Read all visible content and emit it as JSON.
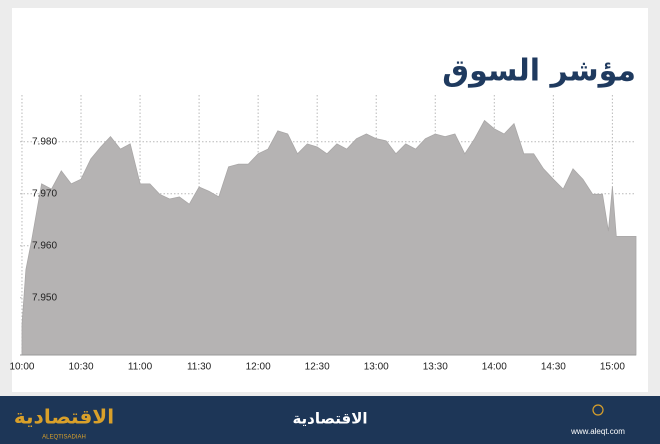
{
  "chart_data": {
    "type": "area",
    "title": "مؤشر السوق",
    "color": "#b5b3b3",
    "grid": true,
    "x": [
      "10:00",
      "10:02",
      "10:05",
      "10:10",
      "10:15",
      "10:20",
      "10:25",
      "10:30",
      "10:35",
      "10:40",
      "10:45",
      "10:50",
      "10:55",
      "11:00",
      "11:05",
      "11:10",
      "11:15",
      "11:20",
      "11:25",
      "11:30",
      "11:35",
      "11:40",
      "11:45",
      "11:50",
      "11:55",
      "12:00",
      "12:05",
      "12:10",
      "12:15",
      "12:20",
      "12:25",
      "12:30",
      "12:35",
      "12:40",
      "12:45",
      "12:50",
      "12:55",
      "13:00",
      "13:05",
      "13:10",
      "13:15",
      "13:20",
      "13:25",
      "13:30",
      "13:35",
      "13:40",
      "13:45",
      "13:50",
      "13:55",
      "14:00",
      "14:05",
      "14:10",
      "14:15",
      "14:20",
      "14:25",
      "14:30",
      "14:35",
      "14:40",
      "14:45",
      "14:50",
      "14:55",
      "14:58",
      "15:00",
      "15:02",
      "15:12"
    ],
    "values": [
      7.9448,
      7.9554,
      7.9612,
      7.9719,
      7.9709,
      7.9744,
      7.9719,
      7.9728,
      7.9767,
      7.979,
      7.981,
      7.9786,
      7.9796,
      7.9719,
      7.9719,
      7.9699,
      7.969,
      7.9694,
      7.968,
      7.9713,
      7.9705,
      7.9694,
      7.9752,
      7.9757,
      7.9757,
      7.9777,
      7.9786,
      7.9821,
      7.9815,
      7.9777,
      7.9796,
      7.979,
      7.9777,
      7.9796,
      7.9786,
      7.9806,
      7.9815,
      7.9806,
      7.9802,
      7.9777,
      7.9796,
      7.9786,
      7.9806,
      7.9815,
      7.981,
      7.9815,
      7.9777,
      7.9806,
      7.9841,
      7.9825,
      7.9815,
      7.9835,
      7.9777,
      7.9777,
      7.9748,
      7.9728,
      7.9709,
      7.9748,
      7.9728,
      7.9699,
      7.9699,
      7.9628,
      7.9713,
      7.9618,
      7.9618
    ],
    "xlim": [
      "09:59",
      "15:12"
    ],
    "xticks": [
      "10:00",
      "10:30",
      "11:00",
      "11:30",
      "12:00",
      "12:30",
      "13:00",
      "13:30",
      "14:00",
      "14:30",
      "15:00"
    ],
    "ylim": [
      7.939,
      7.989
    ],
    "yticks": [
      {
        "value": 7.95,
        "label": "7.950"
      },
      {
        "value": 7.96,
        "label": "7.960"
      },
      {
        "value": 7.97,
        "label": "7.970"
      },
      {
        "value": 7.98,
        "label": "7.980"
      }
    ]
  },
  "footer": {
    "brand": "الاقتصادية",
    "logo": "الاقتصادية",
    "logo_latin": "ALEQTISADIAH",
    "url": "www.aleqt.com"
  }
}
